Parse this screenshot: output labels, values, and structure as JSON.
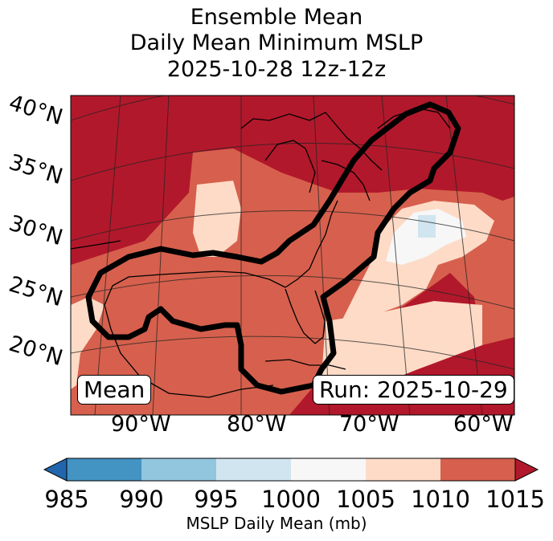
{
  "title": {
    "line1": "Ensemble Mean",
    "line2": "Daily Mean Minimum MSLP",
    "line3": "2025-10-28 12z-12z"
  },
  "labels": {
    "mean_box": "Mean",
    "run_box": "Run: 2025-10-29"
  },
  "axes": {
    "lat_labels": [
      "40°N",
      "35°N",
      "30°N",
      "25°N",
      "20°N"
    ],
    "lon_labels": [
      "90°W",
      "80°W",
      "70°W",
      "60°W"
    ]
  },
  "colorbar": {
    "label": "MSLP Daily Mean (mb)",
    "ticks": [
      "985",
      "990",
      "995",
      "1000",
      "1005",
      "1010",
      "1015"
    ],
    "colors": {
      "below": "#2166ac",
      "985-990": "#4393c3",
      "990-995": "#92c5de",
      "995-1000": "#d1e5f0",
      "1000-1005": "#f7f7f7",
      "1005-1010": "#fddbc7",
      "1010-1015": "#d6604d",
      "above": "#b2182b"
    }
  }
}
